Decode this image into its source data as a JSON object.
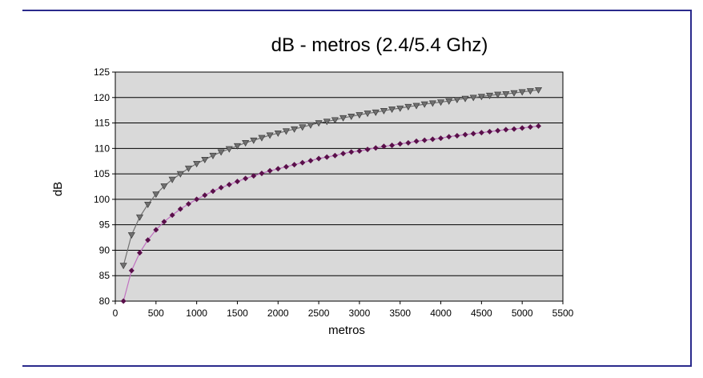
{
  "chart_data": {
    "type": "line",
    "title": "dB - metros (2.4/5.4 Ghz)",
    "xlabel": "metros",
    "ylabel": "dB",
    "xlim": [
      0,
      5500
    ],
    "ylim": [
      80,
      125
    ],
    "xticks": [
      0,
      500,
      1000,
      1500,
      2000,
      2500,
      3000,
      3500,
      4000,
      4500,
      5000,
      5500
    ],
    "yticks": [
      80,
      85,
      90,
      95,
      100,
      105,
      110,
      115,
      120,
      125
    ],
    "grid": "horizontal",
    "legend": "none",
    "plot_background": "#d9d9d9",
    "x": [
      100,
      200,
      300,
      400,
      500,
      600,
      700,
      800,
      900,
      1000,
      1100,
      1200,
      1300,
      1400,
      1500,
      1600,
      1700,
      1800,
      1900,
      2000,
      2100,
      2200,
      2300,
      2400,
      2500,
      2600,
      2700,
      2800,
      2900,
      3000,
      3100,
      3200,
      3300,
      3400,
      3500,
      3600,
      3700,
      3800,
      3900,
      4000,
      4100,
      4200,
      4300,
      4400,
      4500,
      4600,
      4700,
      4800,
      4900,
      5000,
      5100,
      5200
    ],
    "series": [
      {
        "marker": "triangle-down",
        "color": "#707070",
        "values": [
          87.0,
          93.0,
          96.5,
          99.0,
          101.0,
          102.6,
          103.9,
          105.0,
          106.1,
          107.0,
          107.8,
          108.6,
          109.3,
          109.9,
          110.5,
          111.1,
          111.6,
          112.1,
          112.6,
          113.0,
          113.4,
          113.8,
          114.2,
          114.6,
          115.0,
          115.3,
          115.6,
          116.0,
          116.3,
          116.6,
          116.9,
          117.1,
          117.4,
          117.7,
          117.9,
          118.2,
          118.4,
          118.7,
          118.9,
          119.1,
          119.3,
          119.6,
          119.8,
          120.0,
          120.2,
          120.4,
          120.6,
          120.7,
          120.9,
          121.1,
          121.3,
          121.5
        ]
      },
      {
        "marker": "diamond",
        "color": "#5a0f4a",
        "line_color": "#c070c0",
        "values": [
          80.0,
          86.0,
          89.5,
          92.0,
          94.0,
          95.6,
          96.9,
          98.1,
          99.1,
          100.0,
          100.8,
          101.6,
          102.3,
          102.9,
          103.5,
          104.1,
          104.6,
          105.1,
          105.6,
          106.0,
          106.4,
          106.8,
          107.2,
          107.6,
          108.0,
          108.3,
          108.6,
          109.0,
          109.3,
          109.5,
          109.8,
          110.1,
          110.4,
          110.6,
          110.9,
          111.1,
          111.4,
          111.6,
          111.8,
          112.0,
          112.3,
          112.5,
          112.7,
          112.9,
          113.1,
          113.3,
          113.5,
          113.7,
          113.8,
          114.0,
          114.2,
          114.4
        ]
      }
    ]
  }
}
